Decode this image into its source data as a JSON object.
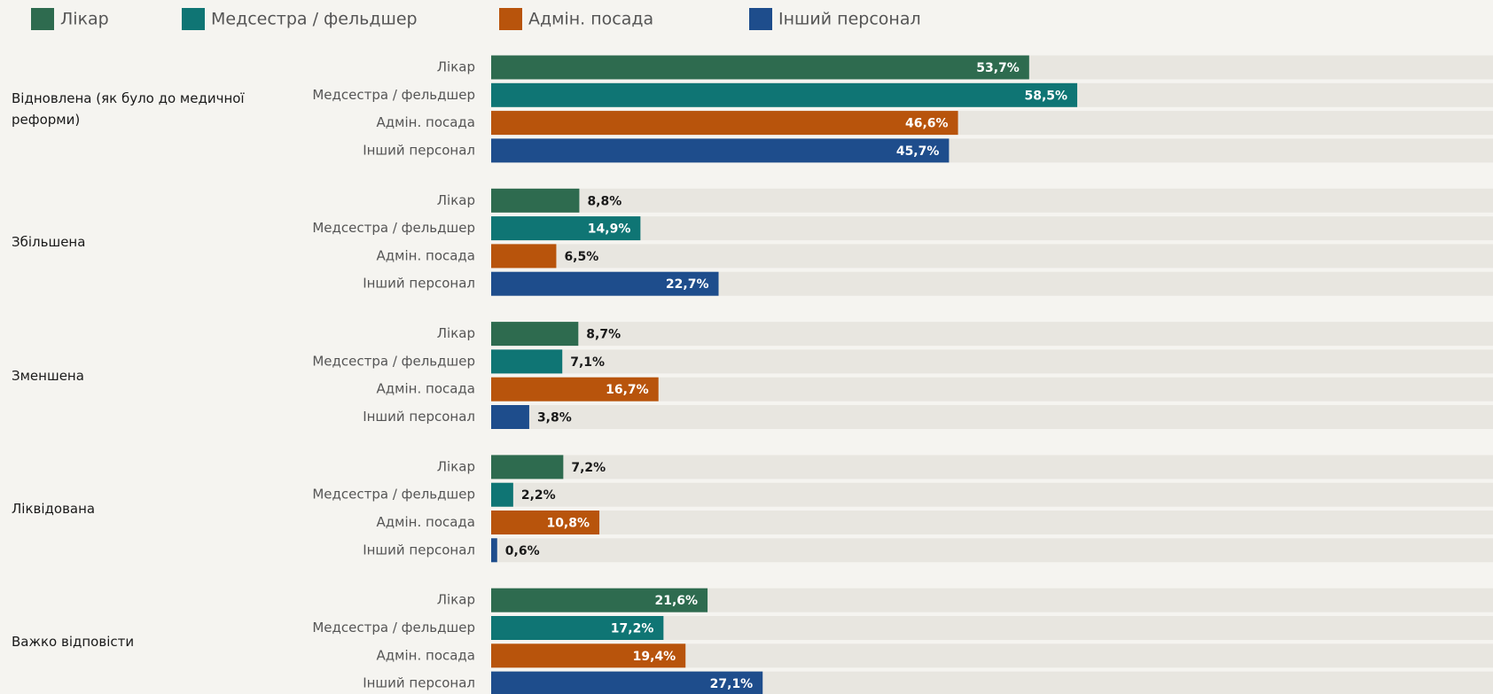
{
  "chart_data": {
    "type": "bar",
    "orientation": "horizontal",
    "categories": [
      "Відновлена (як було до медичної реформи)",
      "Збільшена",
      "Зменшена",
      "Ліквідована",
      "Важко відповісти"
    ],
    "xlim": [
      0,
      100
    ],
    "series": [
      {
        "name": "Лікар",
        "color": "#2e6b4f",
        "values": [
          53.7,
          8.8,
          8.7,
          7.2,
          21.6
        ],
        "value_labels": [
          "53,7%",
          "8,8%",
          "8,7%",
          "7,2%",
          "21,6%"
        ]
      },
      {
        "name": "Медсестра / фельдшер",
        "color": "#0f7574",
        "values": [
          58.5,
          14.9,
          7.1,
          2.2,
          17.2
        ],
        "value_labels": [
          "58,5%",
          "14,9%",
          "7,1%",
          "2,2%",
          "17,2%"
        ]
      },
      {
        "name": "Адмін. посада",
        "color": "#b8540c",
        "values": [
          46.6,
          6.5,
          16.7,
          10.8,
          19.4
        ],
        "value_labels": [
          "46,6%",
          "6,5%",
          "16,7%",
          "10,8%",
          "19,4%"
        ]
      },
      {
        "name": "Інший персонал",
        "color": "#1e4d8c",
        "values": [
          45.7,
          22.7,
          3.8,
          0.6,
          27.1
        ],
        "value_labels": [
          "45,7%",
          "22,7%",
          "3,8%",
          "0,6%",
          "27,1%"
        ]
      }
    ]
  }
}
